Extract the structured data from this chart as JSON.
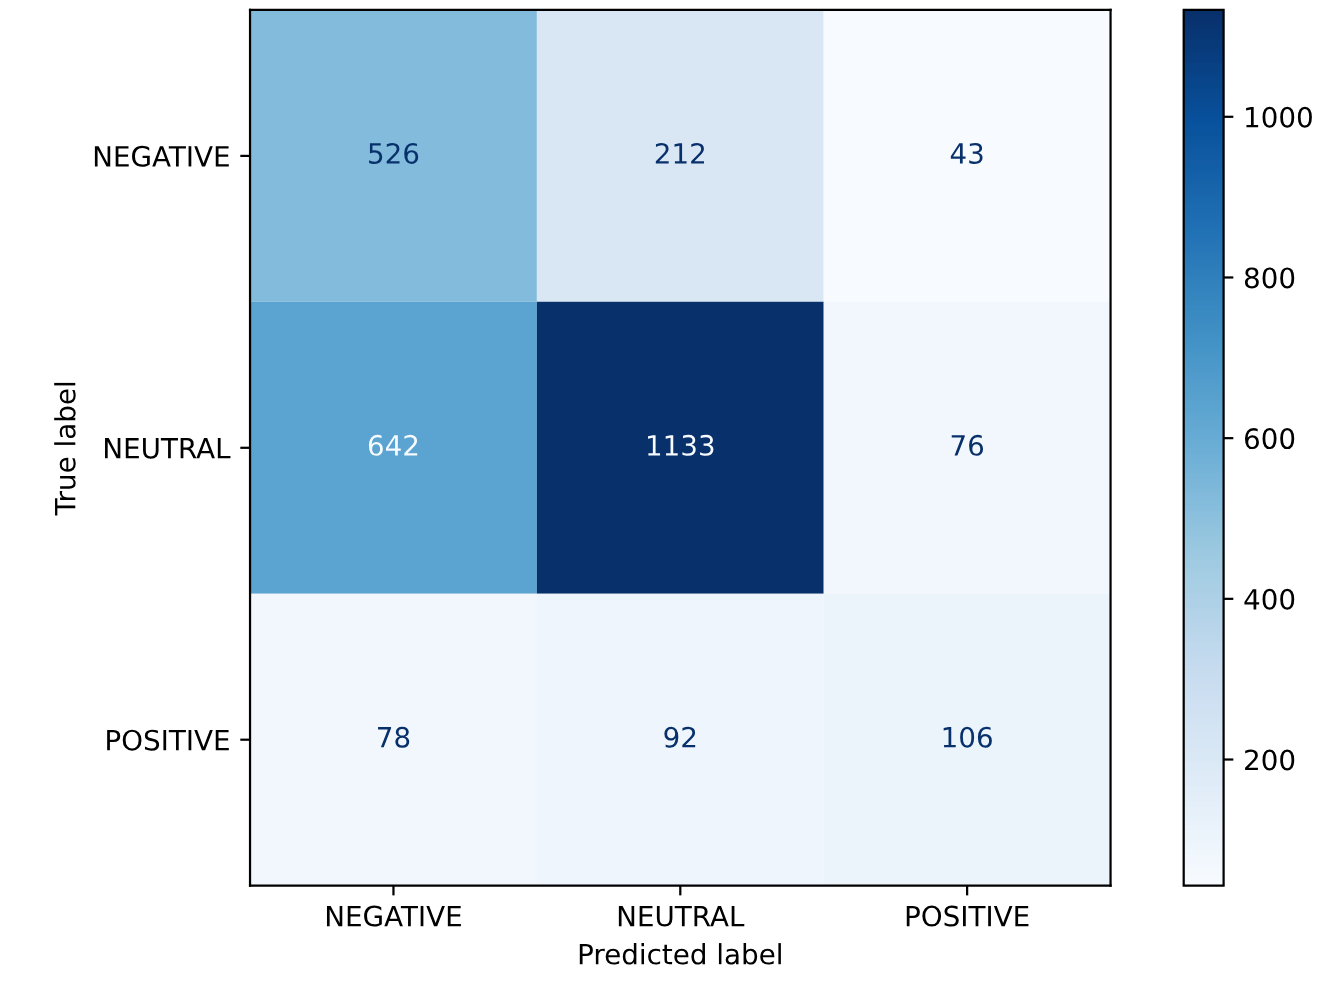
{
  "chart_data": {
    "type": "heatmap",
    "xlabel": "Predicted label",
    "ylabel": "True label",
    "categories": [
      "NEGATIVE",
      "NEUTRAL",
      "POSITIVE"
    ],
    "y_categories": [
      "NEGATIVE",
      "NEUTRAL",
      "POSITIVE"
    ],
    "cells": [
      [
        526,
        212,
        43
      ],
      [
        642,
        1133,
        76
      ],
      [
        78,
        92,
        106
      ]
    ],
    "data_labels": true,
    "clim": [
      43,
      1133
    ],
    "cticks": [
      200,
      400,
      600,
      800,
      1000
    ]
  }
}
